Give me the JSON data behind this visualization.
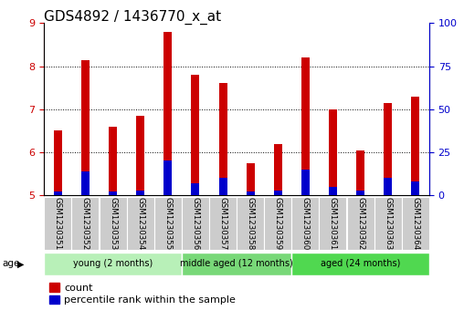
{
  "title": "GDS4892 / 1436770_x_at",
  "samples": [
    "GSM1230351",
    "GSM1230352",
    "GSM1230353",
    "GSM1230354",
    "GSM1230355",
    "GSM1230356",
    "GSM1230357",
    "GSM1230358",
    "GSM1230359",
    "GSM1230360",
    "GSM1230361",
    "GSM1230362",
    "GSM1230363",
    "GSM1230364"
  ],
  "count_values": [
    6.5,
    8.15,
    6.6,
    6.85,
    8.8,
    7.8,
    7.6,
    5.75,
    6.2,
    8.2,
    7.0,
    6.05,
    7.15,
    7.3
  ],
  "percentile_values": [
    2,
    14,
    2,
    3,
    20,
    7,
    10,
    2,
    3,
    15,
    5,
    3,
    10,
    8
  ],
  "y_min": 5,
  "y_max": 9,
  "y_ticks": [
    5,
    6,
    7,
    8,
    9
  ],
  "y2_ticks": [
    0,
    25,
    50,
    75,
    100
  ],
  "count_color": "#cc0000",
  "percentile_color": "#0000cc",
  "groups": [
    {
      "label": "young (2 months)",
      "start": 0,
      "end": 5
    },
    {
      "label": "middle aged (12 months)",
      "start": 5,
      "end": 9
    },
    {
      "label": "aged (24 months)",
      "start": 9,
      "end": 14
    }
  ],
  "group_colors": [
    "#b8f0b8",
    "#78d878",
    "#50d850"
  ],
  "legend_count": "count",
  "legend_percentile": "percentile rank within the sample",
  "title_fontsize": 11,
  "tick_fontsize": 8,
  "bar_width": 0.3
}
